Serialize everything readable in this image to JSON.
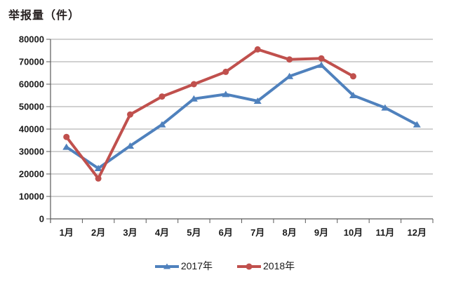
{
  "chart_data": {
    "type": "line",
    "title": "举报量（件）",
    "xlabel": "",
    "ylabel": "举报量（件）",
    "categories": [
      "1月",
      "2月",
      "3月",
      "4月",
      "5月",
      "6月",
      "7月",
      "8月",
      "9月",
      "10月",
      "11月",
      "12月"
    ],
    "series": [
      {
        "name": "2017年",
        "color": "#4f81bd",
        "marker": "triangle",
        "values": [
          32000,
          22500,
          32500,
          42000,
          53500,
          55500,
          52500,
          63500,
          68500,
          55000,
          49500,
          42000
        ]
      },
      {
        "name": "2018年",
        "color": "#c0504d",
        "marker": "circle",
        "values": [
          36500,
          18000,
          46500,
          54500,
          60000,
          65500,
          75500,
          71000,
          71500,
          63500,
          null,
          null
        ]
      }
    ],
    "ylim": [
      0,
      80000
    ],
    "y_ticks": [
      0,
      10000,
      20000,
      30000,
      40000,
      50000,
      60000,
      70000,
      80000
    ],
    "grid": "horizontal",
    "legend_position": "bottom",
    "gridline_color": "#a3a3a3",
    "axis_color": "#595959",
    "tick_label_color": "#1a1a1a"
  }
}
